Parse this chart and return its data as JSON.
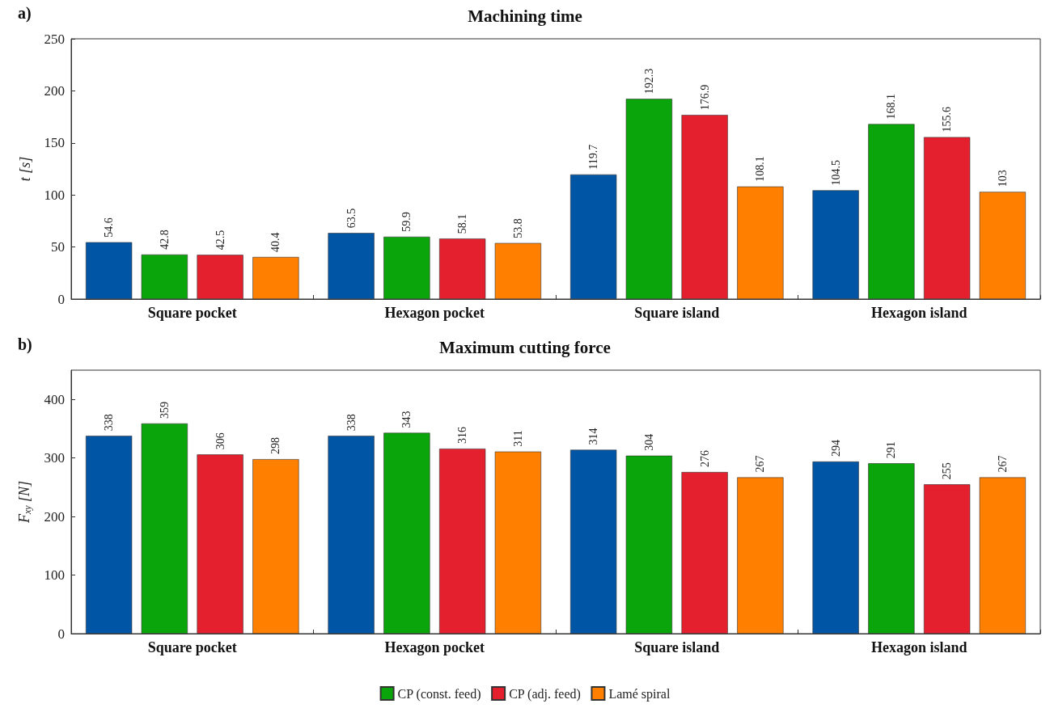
{
  "chart_data": [
    {
      "type": "bar",
      "title": "Machining time",
      "ylabel": "t [s]",
      "annotations": [
        "a)"
      ],
      "categories": [
        "Square pocket",
        "Hexagon pocket",
        "Square island",
        "Hexagon island"
      ],
      "series": [
        {
          "color": "#0055a5",
          "values": [
            54.6,
            63.5,
            119.7,
            104.5
          ]
        },
        {
          "color": "#0aa50a",
          "values": [
            42.8,
            59.9,
            192.3,
            168.1
          ]
        },
        {
          "color": "#e5202e",
          "values": [
            42.5,
            58.1,
            176.9,
            155.6
          ]
        },
        {
          "color": "#ff8000",
          "values": [
            40.4,
            53.8,
            108.1,
            103
          ]
        }
      ],
      "ylim": [
        0,
        250
      ],
      "yticks": [
        0,
        50,
        100,
        150,
        200,
        250
      ],
      "data_labels": true,
      "grid": false,
      "legend": false
    },
    {
      "type": "bar",
      "title": "Maximum cutting force",
      "ylabel": "F$_{xy}$ [N]",
      "annotations": [
        "b)"
      ],
      "categories": [
        "Square pocket",
        "Hexagon pocket",
        "Square island",
        "Hexagon island"
      ],
      "series": [
        {
          "color": "#0055a5",
          "values": [
            338,
            338,
            314,
            294
          ]
        },
        {
          "name": "CP (const. feed)",
          "color": "#0aa50a",
          "values": [
            359,
            343,
            304,
            291
          ]
        },
        {
          "name": "CP (adj. feed)",
          "color": "#e5202e",
          "values": [
            306,
            316,
            276,
            255
          ]
        },
        {
          "name": "Lamé spiral",
          "color": "#ff8000",
          "values": [
            298,
            311,
            267,
            267
          ]
        }
      ],
      "ylim": [
        0,
        450
      ],
      "yticks": [
        0,
        100,
        200,
        300,
        400
      ],
      "data_labels": true,
      "grid": false,
      "legend": "bottom"
    }
  ]
}
